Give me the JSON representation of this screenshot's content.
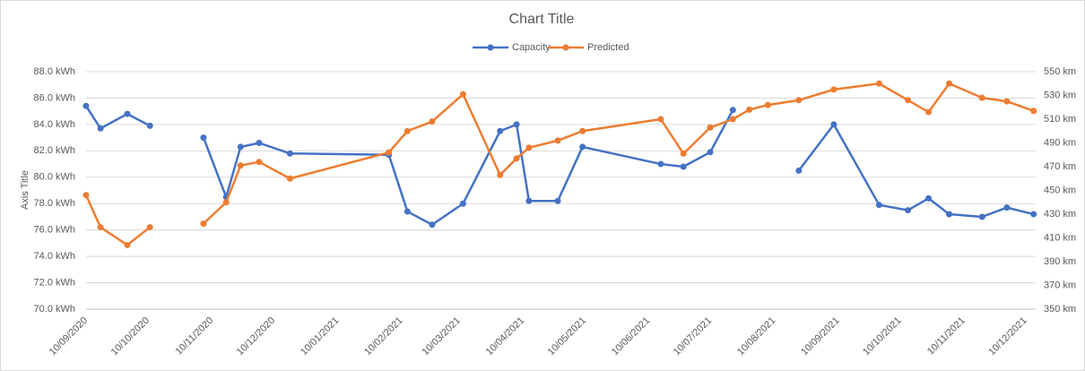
{
  "chart_data": {
    "type": "line",
    "title": "Chart Title",
    "y_label": "Axis Title",
    "x": [
      "2020-09-10",
      "2020-09-17",
      "2020-09-30",
      "2020-10-11",
      "2020-10-24",
      "2020-11-06",
      "2020-11-17",
      "2020-11-24",
      "2020-12-03",
      "2020-12-18",
      "2021-02-04",
      "2021-02-13",
      "2021-02-25",
      "2021-03-12",
      "2021-03-30",
      "2021-04-07",
      "2021-04-13",
      "2021-04-27",
      "2021-05-09",
      "2021-06-16",
      "2021-06-27",
      "2021-07-10",
      "2021-07-21",
      "2021-07-29",
      "2021-08-07",
      "2021-08-22",
      "2021-09-08",
      "2021-09-30",
      "2021-10-14",
      "2021-10-24",
      "2021-11-03",
      "2021-11-19",
      "2021-12-01",
      "2021-12-14"
    ],
    "series": [
      {
        "name": "Capacity",
        "color": "#4472c4",
        "values": [
          85.4,
          83.7,
          84.8,
          83.9,
          null,
          83.0,
          78.5,
          82.3,
          82.6,
          81.8,
          81.7,
          77.4,
          76.4,
          78.0,
          83.5,
          84.0,
          78.2,
          78.2,
          82.3,
          81.0,
          80.8,
          81.9,
          85.1,
          null,
          null,
          80.5,
          84.0,
          77.9,
          77.5,
          78.4,
          77.2,
          77.0,
          77.7,
          77.2
        ]
      },
      {
        "name": "Predicted",
        "color": "#ed7d31",
        "axis": "y2",
        "values": [
          446,
          419,
          404,
          419,
          null,
          422,
          440,
          471,
          474,
          460,
          482,
          500,
          508,
          531,
          463,
          477,
          486,
          492,
          500,
          510,
          481,
          503,
          510,
          518,
          522,
          526,
          535,
          540,
          526,
          516,
          540,
          528,
          525,
          517
        ]
      }
    ],
    "xlim": [
      "2020-09-10",
      "2021-12-15"
    ],
    "xticks": [
      {
        "value": "2020-09-10",
        "label": "10/09/2020"
      },
      {
        "value": "2020-10-10",
        "label": "10/10/2020"
      },
      {
        "value": "2020-11-10",
        "label": "10/11/2020"
      },
      {
        "value": "2020-12-10",
        "label": "10/12/2020"
      },
      {
        "value": "2021-01-10",
        "label": "10/01/2021"
      },
      {
        "value": "2021-02-10",
        "label": "10/02/2021"
      },
      {
        "value": "2021-03-10",
        "label": "10/03/2021"
      },
      {
        "value": "2021-04-10",
        "label": "10/04/2021"
      },
      {
        "value": "2021-05-10",
        "label": "10/05/2021"
      },
      {
        "value": "2021-06-10",
        "label": "10/06/2021"
      },
      {
        "value": "2021-07-10",
        "label": "10/07/2021"
      },
      {
        "value": "2021-08-10",
        "label": "10/08/2021"
      },
      {
        "value": "2021-09-10",
        "label": "10/09/2021"
      },
      {
        "value": "2021-10-10",
        "label": "10/10/2021"
      },
      {
        "value": "2021-11-10",
        "label": "10/11/2021"
      },
      {
        "value": "2021-12-10",
        "label": "10/12/2021"
      }
    ],
    "ylim": [
      70,
      88
    ],
    "yticks": [
      {
        "value": 70,
        "label": "70.0 kWh"
      },
      {
        "value": 72,
        "label": "72.0 kWh"
      },
      {
        "value": 74,
        "label": "74.0 kWh"
      },
      {
        "value": 76,
        "label": "76.0 kWh"
      },
      {
        "value": 78,
        "label": "78.0 kWh"
      },
      {
        "value": 80,
        "label": "80.0 kWh"
      },
      {
        "value": 82,
        "label": "82.0 kWh"
      },
      {
        "value": 84,
        "label": "84.0 kWh"
      },
      {
        "value": 86,
        "label": "86.0 kWh"
      },
      {
        "value": 88,
        "label": "88.0 kWh"
      }
    ],
    "y2lim": [
      350,
      550
    ],
    "y2ticks": [
      {
        "value": 350,
        "label": "350 km"
      },
      {
        "value": 370,
        "label": "370 km"
      },
      {
        "value": 390,
        "label": "390 km"
      },
      {
        "value": 410,
        "label": "410 km"
      },
      {
        "value": 430,
        "label": "430 km"
      },
      {
        "value": 450,
        "label": "450 km"
      },
      {
        "value": 470,
        "label": "470 km"
      },
      {
        "value": 490,
        "label": "490 km"
      },
      {
        "value": 510,
        "label": "510 km"
      },
      {
        "value": 530,
        "label": "530 km"
      },
      {
        "value": 550,
        "label": "550 km"
      }
    ],
    "grid": true,
    "legend": "top"
  }
}
